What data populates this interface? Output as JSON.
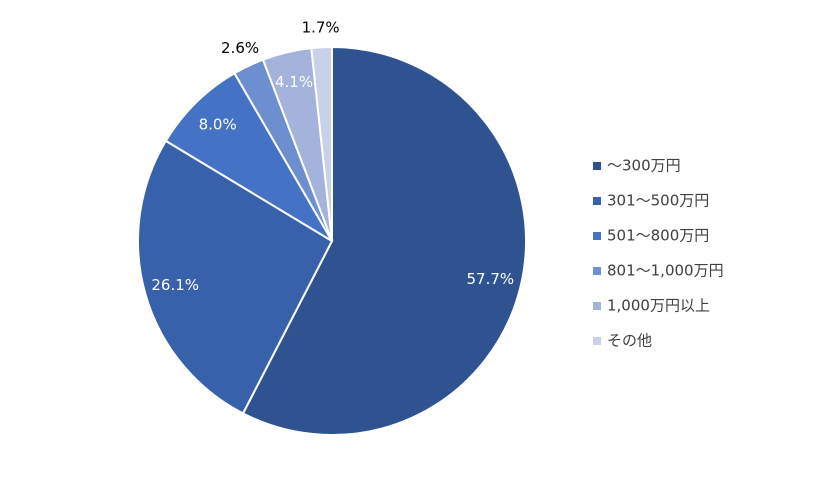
{
  "chart_data": {
    "type": "pie",
    "categories": [
      "～300万円",
      "301～500万円",
      "501～800万円",
      "801～1,000万円",
      "1,000万円以上",
      "その他"
    ],
    "values": [
      57.7,
      26.1,
      8.0,
      2.6,
      4.1,
      1.7
    ],
    "value_labels": [
      "57.7%",
      "26.1%",
      "8.0%",
      "2.6%",
      "4.1%",
      "1.7%"
    ],
    "colors": [
      "#2f5290",
      "#3761aa",
      "#4472c4",
      "#6e8fcf",
      "#a3b3db",
      "#c8d1ea"
    ],
    "legend": "right"
  }
}
